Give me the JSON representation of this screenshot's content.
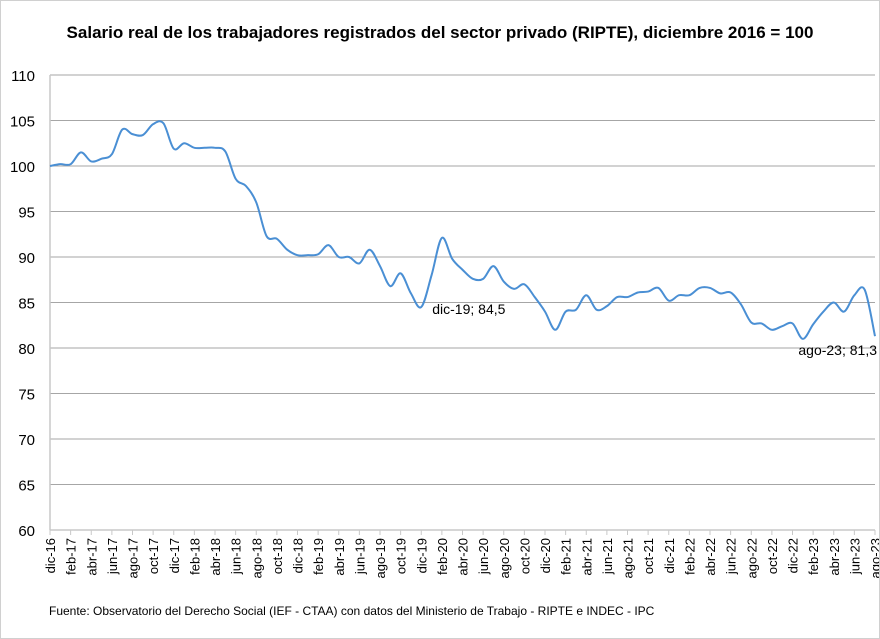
{
  "chart_data": {
    "type": "line",
    "title": "Salario real de los trabajadores registrados del sector privado (RIPTE), diciembre 2016 = 100",
    "xlabel": "",
    "ylabel": "",
    "ylim": [
      60,
      110
    ],
    "yticks": [
      60,
      65,
      70,
      75,
      80,
      85,
      90,
      95,
      100,
      105,
      110
    ],
    "grid": true,
    "legend": "none",
    "x": [
      "dic-16",
      "ene-17",
      "feb-17",
      "mar-17",
      "abr-17",
      "may-17",
      "jun-17",
      "jul-17",
      "ago-17",
      "sep-17",
      "oct-17",
      "nov-17",
      "dic-17",
      "ene-18",
      "feb-18",
      "mar-18",
      "abr-18",
      "may-18",
      "jun-18",
      "jul-18",
      "ago-18",
      "sep-18",
      "oct-18",
      "nov-18",
      "dic-18",
      "ene-19",
      "feb-19",
      "mar-19",
      "abr-19",
      "may-19",
      "jun-19",
      "jul-19",
      "ago-19",
      "sep-19",
      "oct-19",
      "nov-19",
      "dic-19",
      "ene-20",
      "feb-20",
      "mar-20",
      "abr-20",
      "may-20",
      "jun-20",
      "jul-20",
      "ago-20",
      "sep-20",
      "oct-20",
      "nov-20",
      "dic-20",
      "ene-21",
      "feb-21",
      "mar-21",
      "abr-21",
      "may-21",
      "jun-21",
      "jul-21",
      "ago-21",
      "sep-21",
      "oct-21",
      "nov-21",
      "dic-21",
      "ene-22",
      "feb-22",
      "mar-22",
      "abr-22",
      "may-22",
      "jun-22",
      "jul-22",
      "ago-22",
      "sep-22",
      "oct-22",
      "nov-22",
      "dic-22",
      "ene-23",
      "feb-23",
      "mar-23",
      "abr-23",
      "may-23",
      "jun-23",
      "jul-23",
      "ago-23"
    ],
    "xtick_labels": [
      "dic-16",
      "feb-17",
      "abr-17",
      "jun-17",
      "ago-17",
      "oct-17",
      "dic-17",
      "feb-18",
      "abr-18",
      "jun-18",
      "ago-18",
      "oct-18",
      "dic-18",
      "feb-19",
      "abr-19",
      "jun-19",
      "ago-19",
      "oct-19",
      "dic-19",
      "feb-20",
      "abr-20",
      "jun-20",
      "ago-20",
      "oct-20",
      "dic-20",
      "feb-21",
      "abr-21",
      "jun-21",
      "ago-21",
      "oct-21",
      "dic-21",
      "feb-22",
      "abr-22",
      "jun-22",
      "ago-22",
      "oct-22",
      "dic-22",
      "feb-23",
      "abr-23",
      "jun-23",
      "ago-23"
    ],
    "series": [
      {
        "color": "#4a8fd4",
        "values": [
          100,
          100.2,
          100.2,
          101.5,
          100.5,
          100.8,
          101.3,
          104,
          103.5,
          103.4,
          104.6,
          104.7,
          101.9,
          102.5,
          102,
          102,
          102,
          101.6,
          98.6,
          97.8,
          96,
          92.3,
          92,
          90.8,
          90.2,
          90.2,
          90.3,
          91.3,
          90,
          90,
          89.3,
          90.8,
          89,
          86.8,
          88.2,
          86,
          84.5,
          88,
          92.1,
          89.8,
          88.6,
          87.6,
          87.6,
          89,
          87.3,
          86.5,
          87,
          85.6,
          84,
          82,
          84,
          84.2,
          85.8,
          84.2,
          84.6,
          85.6,
          85.6,
          86.1,
          86.2,
          86.6,
          85.2,
          85.8,
          85.8,
          86.6,
          86.6,
          86,
          86.1,
          84.8,
          82.8,
          82.7,
          82,
          82.4,
          82.7,
          81,
          82.6,
          84,
          85,
          84,
          85.8,
          86.4,
          81.3
        ]
      }
    ],
    "annotations": [
      {
        "x": "dic-19",
        "text": "dic-19; 84,5"
      },
      {
        "x": "ago-23",
        "text": "ago-23; 81,3"
      }
    ]
  },
  "source": "Fuente: Observatorio del Derecho Social (IEF - CTAA) con datos del Ministerio de Trabajo - RIPTE e INDEC - IPC"
}
